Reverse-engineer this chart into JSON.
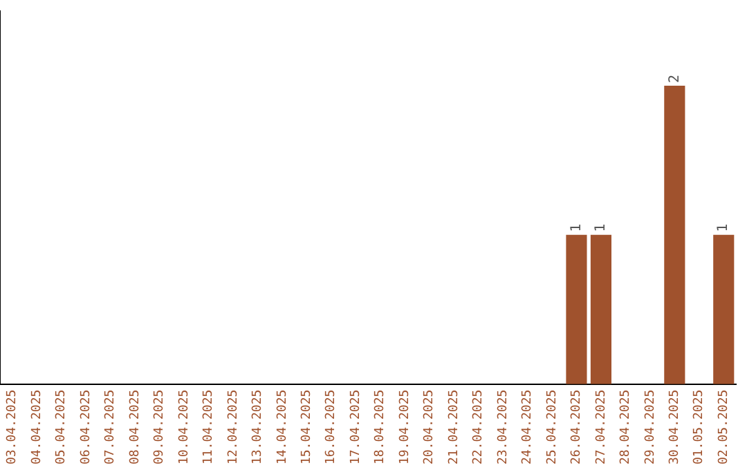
{
  "chart_data": {
    "type": "bar",
    "categories": [
      "03.04.2025",
      "04.04.2025",
      "05.04.2025",
      "06.04.2025",
      "07.04.2025",
      "08.04.2025",
      "09.04.2025",
      "10.04.2025",
      "11.04.2025",
      "12.04.2025",
      "13.04.2025",
      "14.04.2025",
      "15.04.2025",
      "16.04.2025",
      "17.04.2025",
      "18.04.2025",
      "19.04.2025",
      "20.04.2025",
      "21.04.2025",
      "22.04.2025",
      "23.04.2025",
      "24.04.2025",
      "25.04.2025",
      "26.04.2025",
      "27.04.2025",
      "28.04.2025",
      "29.04.2025",
      "30.04.2025",
      "01.05.2025",
      "02.05.2025"
    ],
    "values": [
      null,
      null,
      null,
      null,
      null,
      null,
      null,
      null,
      null,
      null,
      null,
      null,
      null,
      null,
      null,
      null,
      null,
      null,
      null,
      null,
      null,
      null,
      null,
      1,
      1,
      null,
      null,
      2,
      null,
      1
    ],
    "color": "#a0522d",
    "data_labels": true,
    "grid": false,
    "legend": false,
    "tick_labels": "x"
  }
}
